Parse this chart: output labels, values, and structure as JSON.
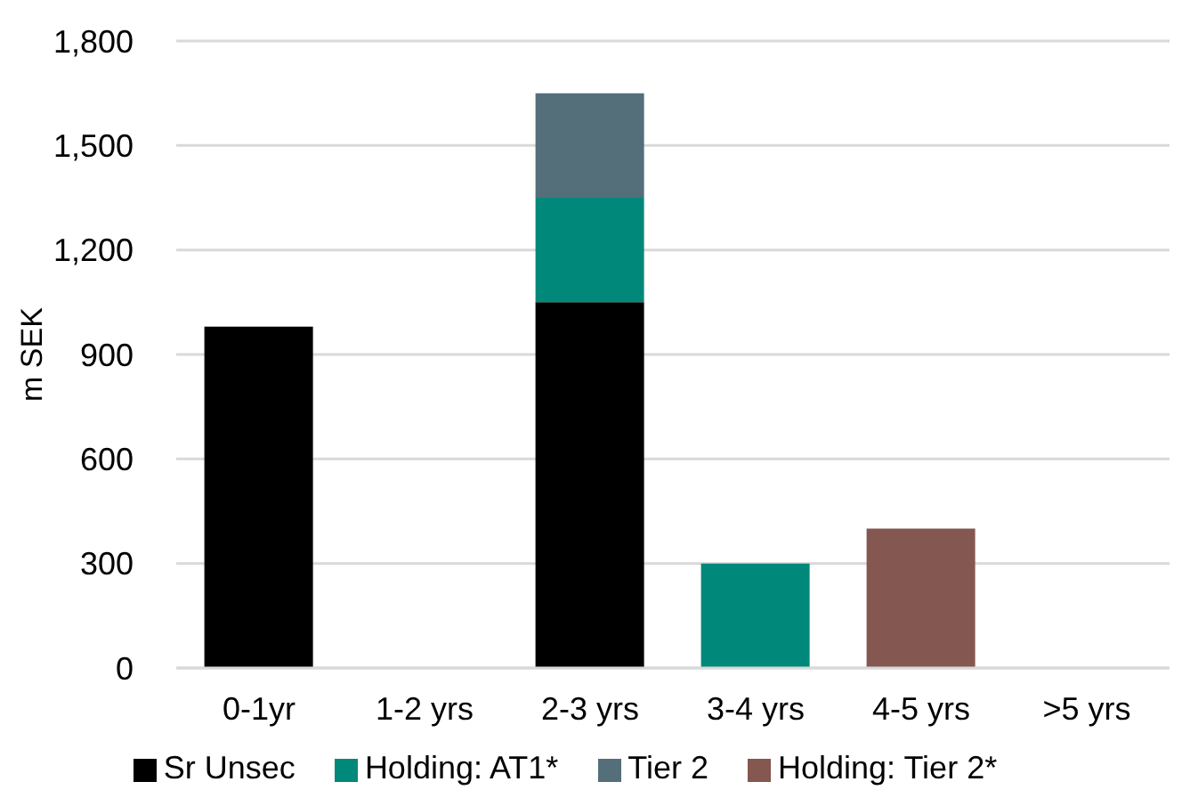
{
  "chart_data": {
    "type": "bar",
    "stacked": true,
    "ylabel": "m SEK",
    "categories": [
      "0-1yr",
      "1-2 yrs",
      "2-3 yrs",
      "3-4 yrs",
      "4-5 yrs",
      ">5 yrs"
    ],
    "series": [
      {
        "name": "Sr Unsec",
        "color": "#000000",
        "values": [
          980,
          null,
          1050,
          null,
          null,
          null
        ]
      },
      {
        "name": "Holding: AT1*",
        "color": "#00887a",
        "values": [
          null,
          null,
          300,
          300,
          null,
          null
        ]
      },
      {
        "name": "Tier 2",
        "color": "#546e7a",
        "values": [
          null,
          null,
          300,
          null,
          null,
          null
        ]
      },
      {
        "name": "Holding: Tier 2*",
        "color": "#845750",
        "values": [
          null,
          null,
          null,
          null,
          400,
          null
        ]
      }
    ],
    "ylim": [
      0,
      1800
    ],
    "yticks": [
      0,
      300,
      600,
      900,
      {
        "value": 1200,
        "label": "1,200"
      },
      {
        "value": 1500,
        "label": "1,500"
      },
      {
        "value": 1800,
        "label": "1,800"
      }
    ],
    "grid": "y",
    "legend": "bottom"
  }
}
